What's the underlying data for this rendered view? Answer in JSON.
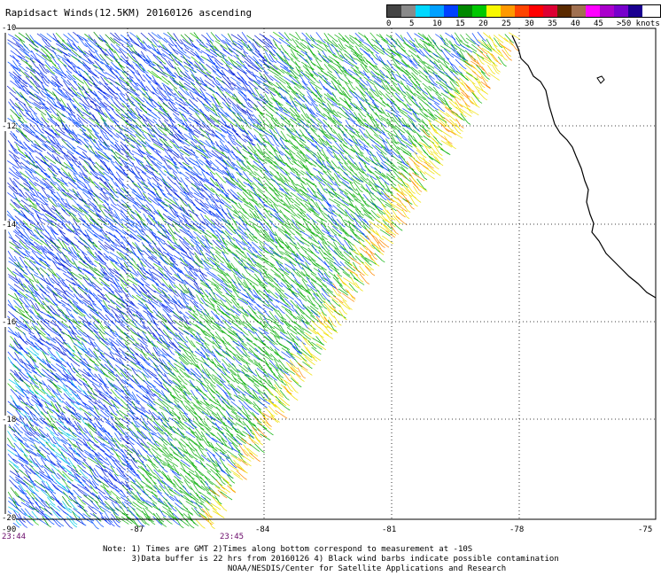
{
  "header": {
    "title": "Rapidsact Winds(12.5KM) 20160126 ascending"
  },
  "legend": {
    "colors": [
      "#444444",
      "#8a8a8a",
      "#00d8ff",
      "#00a0ff",
      "#0040ff",
      "#008800",
      "#00c800",
      "#f8f800",
      "#ff9900",
      "#ff4400",
      "#ff0000",
      "#dd0033",
      "#5a2a00",
      "#a07050",
      "#ff00ff",
      "#aa00cc",
      "#7700cc",
      "#1a0090"
    ],
    "labels": [
      "0",
      "5",
      "10",
      "15",
      "20",
      "25",
      "30",
      "35",
      "40",
      "45",
      ">50 knots"
    ]
  },
  "map": {
    "lat_labels": [
      "-10",
      "-12",
      "-14",
      "-16",
      "-18",
      "-20"
    ],
    "lon_labels": [
      "-90",
      "-87",
      "-84",
      "-81",
      "-78",
      "-75"
    ],
    "time_labels": [
      "23:44",
      "23:45"
    ]
  },
  "notes": {
    "line1": "Note: 1) Times are GMT 2)Times along bottom correspond to measurement at -10S",
    "line2": "      3)Data buffer is 22 hrs from 20160126 4) Black wind barbs indicate possible contamination",
    "line3": "                          NOAA/NESDIS/Center for Satellite Applications and Research"
  }
}
